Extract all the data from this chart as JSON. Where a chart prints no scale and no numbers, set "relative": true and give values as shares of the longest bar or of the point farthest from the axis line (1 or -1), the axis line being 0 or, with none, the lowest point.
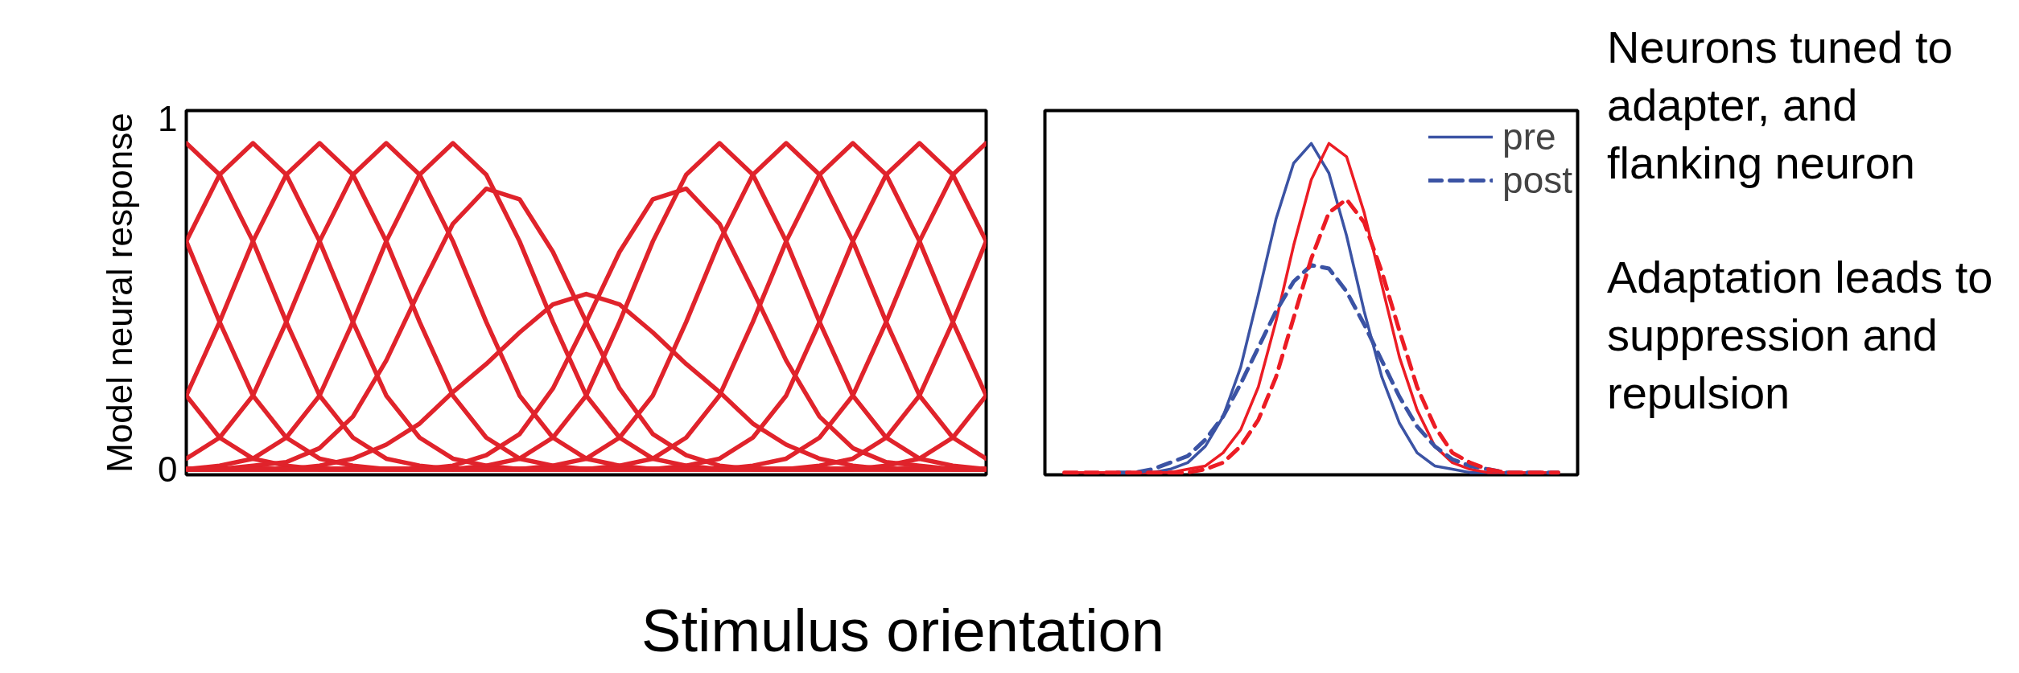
{
  "chart_data": [
    {
      "type": "line",
      "ylabel": "Model neural response",
      "xlabel": "Stimulus orientation",
      "tick_labels": "y",
      "ylim": [
        -0.016,
        1.023
      ],
      "yticks": [
        0,
        1
      ],
      "categories": [
        null,
        null,
        null,
        null,
        null,
        null,
        null,
        null,
        null,
        null,
        null,
        null,
        null,
        null,
        null,
        null,
        null,
        null,
        null,
        null,
        null,
        null,
        null,
        null,
        null
      ],
      "series": [
        {
          "color": "#e0232b",
          "values": [
            0.21,
            0.09,
            0.03,
            0.01,
            0,
            0,
            0,
            0,
            0,
            0,
            0,
            0,
            0,
            0,
            0,
            0,
            0,
            0,
            0,
            0,
            0,
            0,
            0,
            0,
            0
          ]
        },
        {
          "color": "#e0232b",
          "values": [
            0.65,
            0.42,
            0.21,
            0.09,
            0.03,
            0.01,
            0,
            0,
            0,
            0,
            0,
            0,
            0,
            0,
            0,
            0,
            0,
            0,
            0,
            0,
            0,
            0,
            0,
            0,
            0
          ]
        },
        {
          "color": "#e0232b",
          "values": [
            0.93,
            0.84,
            0.65,
            0.42,
            0.21,
            0.09,
            0.03,
            0.01,
            0,
            0,
            0,
            0,
            0,
            0,
            0,
            0,
            0,
            0,
            0,
            0,
            0,
            0,
            0,
            0,
            0
          ]
        },
        {
          "color": "#e0232b",
          "values": [
            0.65,
            0.84,
            0.93,
            0.84,
            0.65,
            0.42,
            0.21,
            0.09,
            0.03,
            0.01,
            0,
            0,
            0,
            0,
            0,
            0,
            0,
            0,
            0,
            0,
            0,
            0,
            0,
            0,
            0
          ]
        },
        {
          "color": "#e0232b",
          "values": [
            0.21,
            0.42,
            0.65,
            0.84,
            0.93,
            0.84,
            0.65,
            0.42,
            0.21,
            0.09,
            0.03,
            0.01,
            0,
            0,
            0,
            0,
            0,
            0,
            0,
            0,
            0,
            0,
            0,
            0,
            0
          ]
        },
        {
          "color": "#e0232b",
          "values": [
            0.03,
            0.09,
            0.21,
            0.42,
            0.65,
            0.84,
            0.93,
            0.84,
            0.65,
            0.42,
            0.21,
            0.09,
            0.03,
            0.01,
            0,
            0,
            0,
            0,
            0,
            0,
            0,
            0,
            0,
            0,
            0
          ]
        },
        {
          "color": "#e0232b",
          "values": [
            0,
            0.01,
            0.03,
            0.09,
            0.21,
            0.42,
            0.65,
            0.84,
            0.93,
            0.84,
            0.65,
            0.42,
            0.21,
            0.09,
            0.03,
            0.01,
            0,
            0,
            0,
            0,
            0,
            0,
            0,
            0,
            0
          ]
        },
        {
          "color": "#e0232b",
          "values": [
            0,
            0,
            0.01,
            0.02,
            0.06,
            0.15,
            0.31,
            0.51,
            0.7,
            0.8,
            0.77,
            0.62,
            0.42,
            0.23,
            0.1,
            0.04,
            0.01,
            0,
            0,
            0,
            0,
            0,
            0,
            0,
            0
          ]
        },
        {
          "color": "#e0232b",
          "values": [
            0,
            0,
            0,
            0,
            0.01,
            0.03,
            0.07,
            0.13,
            0.22,
            0.3,
            0.39,
            0.47,
            0.5,
            0.47,
            0.39,
            0.3,
            0.22,
            0.13,
            0.07,
            0.03,
            0.01,
            0,
            0,
            0,
            0
          ]
        },
        {
          "color": "#e0232b",
          "values": [
            0,
            0,
            0,
            0,
            0,
            0,
            0,
            0,
            0.01,
            0.04,
            0.1,
            0.23,
            0.42,
            0.62,
            0.77,
            0.8,
            0.7,
            0.51,
            0.31,
            0.15,
            0.06,
            0.02,
            0.01,
            0,
            0
          ]
        },
        {
          "color": "#e0232b",
          "values": [
            0,
            0,
            0,
            0,
            0,
            0,
            0,
            0,
            0,
            0.01,
            0.03,
            0.09,
            0.21,
            0.42,
            0.65,
            0.84,
            0.93,
            0.84,
            0.65,
            0.42,
            0.21,
            0.09,
            0.03,
            0.01,
            0
          ]
        },
        {
          "color": "#e0232b",
          "values": [
            0,
            0,
            0,
            0,
            0,
            0,
            0,
            0,
            0,
            0,
            0,
            0.01,
            0.03,
            0.09,
            0.21,
            0.42,
            0.65,
            0.84,
            0.93,
            0.84,
            0.65,
            0.42,
            0.21,
            0.09,
            0.03
          ]
        },
        {
          "color": "#e0232b",
          "values": [
            0,
            0,
            0,
            0,
            0,
            0,
            0,
            0,
            0,
            0,
            0,
            0,
            0,
            0.01,
            0.03,
            0.09,
            0.21,
            0.42,
            0.65,
            0.84,
            0.93,
            0.84,
            0.65,
            0.42,
            0.21
          ]
        },
        {
          "color": "#e0232b",
          "values": [
            0,
            0,
            0,
            0,
            0,
            0,
            0,
            0,
            0,
            0,
            0,
            0,
            0,
            0,
            0,
            0.01,
            0.03,
            0.09,
            0.21,
            0.42,
            0.65,
            0.84,
            0.93,
            0.84,
            0.65
          ]
        },
        {
          "color": "#e0232b",
          "values": [
            0,
            0,
            0,
            0,
            0,
            0,
            0,
            0,
            0,
            0,
            0,
            0,
            0,
            0,
            0,
            0,
            0,
            0.01,
            0.03,
            0.09,
            0.21,
            0.42,
            0.65,
            0.84,
            0.93
          ]
        },
        {
          "color": "#e0232b",
          "values": [
            0,
            0,
            0,
            0,
            0,
            0,
            0,
            0,
            0,
            0,
            0,
            0,
            0,
            0,
            0,
            0,
            0,
            0,
            0,
            0.01,
            0.03,
            0.09,
            0.21,
            0.42,
            0.65
          ]
        },
        {
          "color": "#e0232b",
          "values": [
            0,
            0,
            0,
            0,
            0,
            0,
            0,
            0,
            0,
            0,
            0,
            0,
            0,
            0,
            0,
            0,
            0,
            0,
            0,
            0,
            0,
            0.01,
            0.03,
            0.09,
            0.21
          ]
        }
      ]
    },
    {
      "type": "line",
      "relative": true,
      "legend": "top right",
      "annotations": [
        "Neurons tuned to adapter, and flanking neuron",
        "Adaptation leads to suppression and repulsion"
      ],
      "categories": [
        null,
        null,
        null,
        null,
        null,
        null,
        null,
        null,
        null,
        null,
        null,
        null,
        null,
        null,
        null,
        null,
        null,
        null,
        null,
        null,
        null,
        null,
        null,
        null,
        null,
        null,
        null,
        null,
        null
      ],
      "series": [
        {
          "name": "pre",
          "color": "#3b53a4",
          "line_style": "solid",
          "values": [
            null,
            null,
            null,
            0,
            0,
            0,
            0.01,
            0.03,
            0.08,
            0.17,
            0.32,
            0.54,
            0.77,
            0.94,
            1.0,
            0.91,
            0.72,
            0.49,
            0.29,
            0.15,
            0.06,
            0.02,
            0.01,
            0,
            0,
            0,
            0,
            0,
            0
          ]
        },
        {
          "color": "#ec1c24",
          "line_style": "solid",
          "values": [
            0,
            0,
            0,
            0,
            0,
            0,
            0,
            0.01,
            0.02,
            0.06,
            0.13,
            0.26,
            0.46,
            0.69,
            0.89,
            1.0,
            0.96,
            0.79,
            0.57,
            0.35,
            0.19,
            0.08,
            0.03,
            0.01,
            0,
            0,
            0,
            0,
            0
          ]
        },
        {
          "name": "post",
          "color": "#3b53a4",
          "line_style": "dashed",
          "values": [
            null,
            null,
            null,
            0,
            0,
            0.01,
            0.03,
            0.05,
            0.1,
            0.17,
            0.27,
            0.38,
            0.49,
            0.58,
            0.63,
            0.62,
            0.55,
            0.45,
            0.34,
            0.23,
            0.14,
            0.08,
            0.04,
            0.02,
            0.01,
            0,
            0,
            0,
            0
          ]
        },
        {
          "color": "#ec1c24",
          "line_style": "dashed",
          "values": [
            0,
            0,
            0,
            0,
            0,
            0,
            0,
            0,
            0.01,
            0.03,
            0.08,
            0.16,
            0.29,
            0.47,
            0.65,
            0.79,
            0.83,
            0.76,
            0.61,
            0.43,
            0.26,
            0.14,
            0.06,
            0.03,
            0.01,
            0,
            0,
            0,
            0
          ]
        }
      ]
    }
  ]
}
